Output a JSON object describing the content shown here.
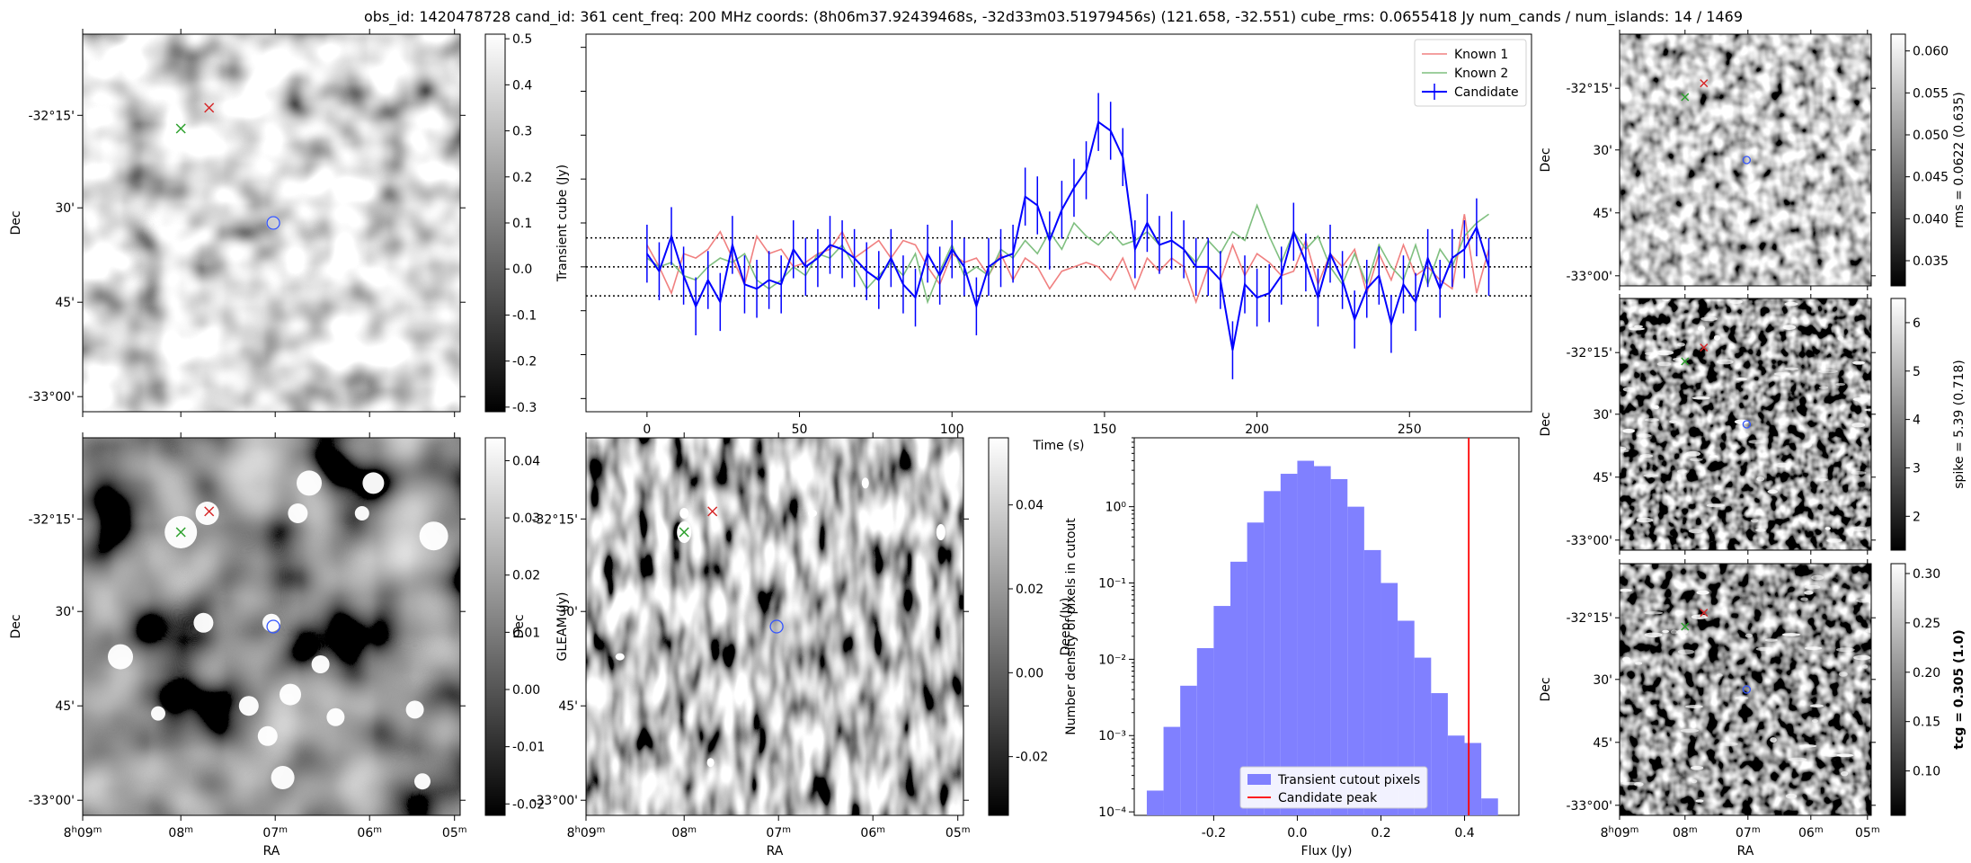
{
  "title": "obs_id: 1420478728 cand_id: 361 cent_freq: 200 MHz coords: (8h06m37.92439468s, -32d33m03.51979456s) (121.658, -32.551) cube_rms: 0.0655418 Jy num_cands / num_islands: 14 / 1469",
  "sky_axes": {
    "xlabel": "RA",
    "ylabel": "Dec",
    "ra_ticks": [
      {
        "h": "8",
        "m": "09"
      },
      {
        "h": "",
        "m": "08"
      },
      {
        "h": "",
        "m": "07"
      },
      {
        "h": "",
        "m": "06"
      },
      {
        "h": "",
        "m": "05"
      }
    ],
    "dec_ticks": [
      "-32°15'",
      "30'",
      "45'",
      "-33°00'"
    ]
  },
  "colors": {
    "candidate": "#0000ff",
    "known1": "#f08080",
    "known2": "#7fbf7f",
    "candidate_peak": "#ff0000",
    "hist_fill": "#8080ff",
    "known1_marker": "#d62728",
    "known2_marker": "#2ca02c",
    "source_circle": "#3355ff"
  },
  "panels": {
    "transient_image": {
      "colorbar_label": "Transient cube (Jy)",
      "colorbar_ticks": [
        "0.5",
        "0.4",
        "0.3",
        "0.2",
        "0.1",
        "0.0",
        "-0.1",
        "-0.2",
        "-0.3"
      ],
      "range": [
        -0.31,
        0.51
      ]
    },
    "gleam_image": {
      "colorbar_label": "GLEAM (Jy)",
      "colorbar_ticks": [
        "0.04",
        "0.03",
        "0.02",
        "0.01",
        "0.00",
        "-0.01",
        "-0.02"
      ],
      "range": [
        -0.022,
        0.044
      ]
    },
    "deep_image": {
      "colorbar_label": "Deep (Jy)",
      "colorbar_ticks": [
        "0.04",
        "0.02",
        "0.00",
        "-0.02"
      ],
      "range": [
        -0.034,
        0.056
      ]
    },
    "rms_image": {
      "colorbar_label": "rms = 0.0622 (0.635)",
      "colorbar_ticks": [
        "0.060",
        "0.055",
        "0.050",
        "0.045",
        "0.040",
        "0.035"
      ],
      "range": [
        0.032,
        0.062
      ]
    },
    "spike_image": {
      "colorbar_label": "spike = 5.39 (0.718)",
      "colorbar_ticks": [
        "6",
        "5",
        "4",
        "3",
        "2"
      ],
      "range": [
        1.3,
        6.5
      ]
    },
    "tcg_image": {
      "colorbar_label": "tcg = 0.305 (1.0)",
      "colorbar_ticks": [
        "0.30",
        "0.25",
        "0.20",
        "0.15",
        "0.10"
      ],
      "range": [
        0.055,
        0.31
      ]
    }
  },
  "chart_data": [
    {
      "type": "line",
      "title": "",
      "xlabel": "Time (s)",
      "ylabel": "",
      "xlim": [
        -20,
        290
      ],
      "ylim": [
        -0.33,
        0.53
      ],
      "x_ticks": [
        0,
        50,
        100,
        150,
        200,
        250
      ],
      "hlines": [
        0.066,
        0.0,
        -0.066
      ],
      "legend": "top-right",
      "series": [
        {
          "name": "Known 1",
          "x": [
            0,
            4,
            8,
            12,
            16,
            20,
            24,
            28,
            32,
            36,
            40,
            44,
            48,
            52,
            56,
            60,
            64,
            68,
            72,
            76,
            80,
            84,
            88,
            92,
            96,
            100,
            104,
            108,
            112,
            116,
            120,
            124,
            128,
            132,
            136,
            140,
            144,
            148,
            152,
            156,
            160,
            164,
            168,
            172,
            176,
            180,
            184,
            188,
            192,
            196,
            200,
            204,
            208,
            212,
            216,
            220,
            224,
            228,
            232,
            236,
            240,
            244,
            248,
            252,
            256,
            260,
            264,
            268,
            272,
            276
          ],
          "y": [
            0.05,
            0.0,
            -0.06,
            0.03,
            0.02,
            0.04,
            0.08,
            0.02,
            -0.04,
            0.07,
            0.03,
            0.04,
            0.0,
            0.01,
            0.03,
            0.04,
            0.08,
            0.02,
            0.04,
            0.06,
            0.02,
            0.06,
            0.05,
            0.0,
            -0.04,
            0.03,
            0.01,
            0.02,
            -0.02,
            0.03,
            -0.03,
            0.02,
            0.0,
            -0.05,
            -0.01,
            0.0,
            0.01,
            0.0,
            -0.03,
            0.02,
            -0.05,
            0.02,
            -0.01,
            0.02,
            0.0,
            -0.08,
            0.0,
            -0.03,
            0.05,
            -0.02,
            0.03,
            0.01,
            -0.02,
            -0.01,
            0.06,
            -0.04,
            0.03,
            0.0,
            0.04,
            -0.06,
            0.03,
            -0.03,
            0.05,
            -0.02,
            0.0,
            -0.03,
            -0.05,
            0.12,
            -0.06,
            0.04
          ]
        },
        {
          "name": "Known 2",
          "x": [
            0,
            4,
            8,
            12,
            16,
            20,
            24,
            28,
            32,
            36,
            40,
            44,
            48,
            52,
            56,
            60,
            64,
            68,
            72,
            76,
            80,
            84,
            88,
            92,
            96,
            100,
            104,
            108,
            112,
            116,
            120,
            124,
            128,
            132,
            136,
            140,
            144,
            148,
            152,
            156,
            160,
            164,
            168,
            172,
            176,
            180,
            184,
            188,
            192,
            196,
            200,
            204,
            208,
            212,
            216,
            220,
            224,
            228,
            232,
            236,
            240,
            244,
            248,
            252,
            256,
            260,
            264,
            268,
            272,
            276
          ],
          "y": [
            0.02,
            0.0,
            0.01,
            -0.02,
            -0.03,
            0.0,
            0.02,
            0.01,
            0.03,
            -0.03,
            -0.05,
            -0.03,
            0.0,
            -0.02,
            0.03,
            0.02,
            0.05,
            0.0,
            -0.05,
            -0.02,
            0.01,
            -0.02,
            0.03,
            -0.08,
            -0.01,
            0.05,
            -0.02,
            0.0,
            -0.02,
            0.04,
            0.02,
            0.06,
            0.03,
            0.08,
            0.04,
            0.1,
            0.07,
            0.05,
            0.08,
            0.05,
            0.06,
            0.08,
            0.05,
            0.06,
            0.04,
            0.01,
            0.06,
            0.03,
            0.08,
            0.06,
            0.14,
            0.07,
            0.01,
            0.08,
            0.04,
            0.07,
            0.0,
            -0.04,
            0.03,
            -0.04,
            0.05,
            0.0,
            -0.03,
            0.05,
            -0.04,
            0.04,
            0.0,
            0.07,
            0.1,
            0.12
          ]
        },
        {
          "name": "Candidate",
          "x": [
            0,
            4,
            8,
            12,
            16,
            20,
            24,
            28,
            32,
            36,
            40,
            44,
            48,
            52,
            56,
            60,
            64,
            68,
            72,
            76,
            80,
            84,
            88,
            92,
            96,
            100,
            104,
            108,
            112,
            116,
            120,
            124,
            128,
            132,
            136,
            140,
            144,
            148,
            152,
            156,
            160,
            164,
            168,
            172,
            176,
            180,
            184,
            188,
            192,
            196,
            200,
            204,
            208,
            212,
            216,
            220,
            224,
            228,
            232,
            236,
            240,
            244,
            248,
            252,
            256,
            260,
            264,
            268,
            272,
            276
          ],
          "y": [
            0.03,
            -0.01,
            0.07,
            -0.02,
            -0.09,
            -0.03,
            -0.08,
            0.05,
            -0.04,
            -0.05,
            -0.03,
            -0.04,
            0.04,
            0.0,
            0.02,
            0.05,
            0.04,
            0.02,
            -0.01,
            -0.03,
            0.02,
            -0.04,
            -0.07,
            0.03,
            -0.02,
            0.04,
            0.0,
            -0.09,
            0.0,
            0.02,
            0.03,
            0.16,
            0.14,
            0.06,
            0.13,
            0.18,
            0.22,
            0.33,
            0.31,
            0.25,
            0.04,
            0.1,
            0.05,
            0.06,
            0.04,
            0.0,
            0.0,
            -0.03,
            -0.19,
            -0.04,
            -0.07,
            -0.06,
            -0.02,
            0.08,
            0.01,
            -0.07,
            0.03,
            -0.03,
            -0.12,
            -0.05,
            -0.02,
            -0.13,
            -0.04,
            -0.08,
            0.02,
            -0.05,
            0.02,
            0.04,
            0.09,
            0.0
          ],
          "err": 0.066
        }
      ]
    },
    {
      "type": "bar",
      "title": "",
      "xlabel": "Flux (Jy)",
      "ylabel": "Number density of pixels in cutout",
      "yscale": "log",
      "xlim": [
        -0.39,
        0.53
      ],
      "ylim": [
        9e-05,
        8
      ],
      "x_ticks": [
        "-0.2",
        "0.0",
        "0.2",
        "0.4"
      ],
      "y_ticks": [
        {
          "v": 0.0001,
          "label": "10⁻⁴"
        },
        {
          "v": 0.001,
          "label": "10⁻³"
        },
        {
          "v": 0.01,
          "label": "10⁻²"
        },
        {
          "v": 0.1,
          "label": "10⁻¹"
        },
        {
          "v": 1,
          "label": "10⁰"
        }
      ],
      "bin_edges": [
        -0.36,
        -0.32,
        -0.28,
        -0.24,
        -0.2,
        -0.16,
        -0.12,
        -0.08,
        -0.04,
        0.0,
        0.04,
        0.08,
        0.12,
        0.16,
        0.2,
        0.24,
        0.28,
        0.32,
        0.36,
        0.4,
        0.44,
        0.48
      ],
      "values": [
        0.00019,
        0.0013,
        0.0045,
        0.014,
        0.05,
        0.19,
        0.62,
        1.6,
        2.7,
        4.0,
        3.4,
        2.3,
        1.0,
        0.27,
        0.1,
        0.032,
        0.0105,
        0.0036,
        0.001,
        0.0008,
        0.00015
      ],
      "series_name": "Transient cutout pixels",
      "vline": {
        "name": "Candidate peak",
        "x": 0.41
      },
      "legend": "bottom-center"
    }
  ]
}
